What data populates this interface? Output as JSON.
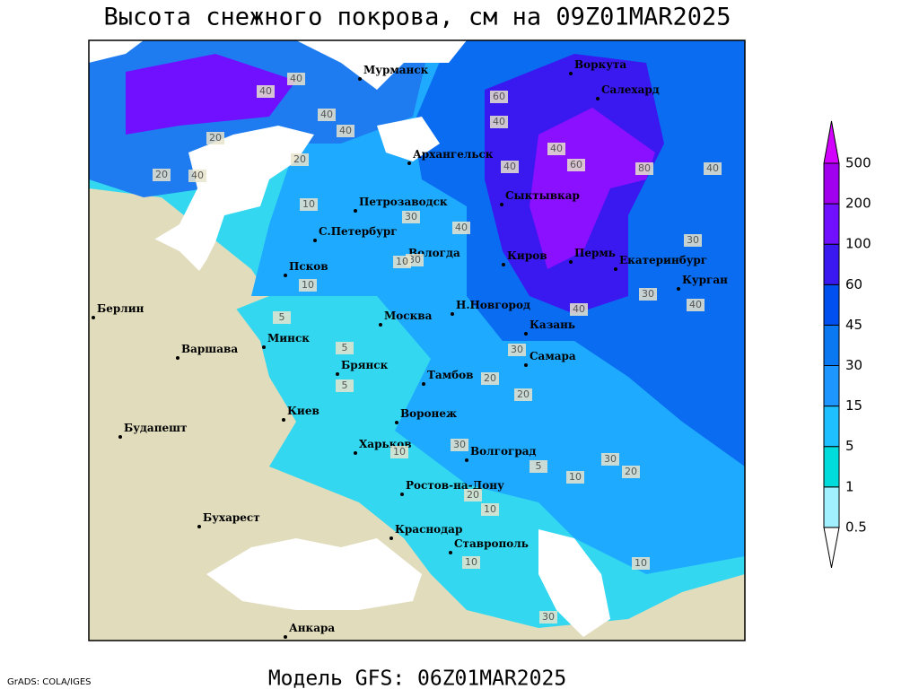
{
  "title": "Высота снежного покрова, см на 09Z01MAR2025",
  "footer": "Модель GFS: 06Z01MAR2025",
  "credit": "GrADS: COLA/IGES",
  "colorbar": {
    "levels": [
      "0.5",
      "1",
      "5",
      "15",
      "30",
      "45",
      "60",
      "100",
      "200",
      "500"
    ],
    "colors": [
      "#ffffff",
      "#a0f0ff",
      "#00dcdc",
      "#1ec0ff",
      "#1e96ff",
      "#0a78f0",
      "#0050f0",
      "#3a18f0",
      "#7010ff",
      "#a000ee",
      "#d200ff"
    ]
  },
  "cities": [
    "Мурманск",
    "Воркута",
    "Салехард",
    "Архангельск",
    "Петрозаводск",
    "Сыктывкар",
    "С.Петербург",
    "Вологда",
    "Киров",
    "Пермь",
    "Екатеринбург",
    "Курган",
    "Псков",
    "Н.Новгород",
    "Казань",
    "Москва",
    "Берлин",
    "Варшава",
    "Минск",
    "Брянск",
    "Тамбов",
    "Самара",
    "Киев",
    "Воронеж",
    "Харьков",
    "Волгоград",
    "Будапешт",
    "Ростов-на-Дону",
    "Бухарест",
    "Краснодар",
    "Ставрополь",
    "Анкара"
  ],
  "contour_labels": [
    "40",
    "40",
    "20",
    "40",
    "20",
    "40",
    "40",
    "20",
    "60",
    "40",
    "40",
    "60",
    "80",
    "40",
    "30",
    "40",
    "10",
    "30",
    "40",
    "30",
    "10",
    "5",
    "10",
    "5",
    "5",
    "30",
    "20",
    "40",
    "30",
    "20",
    "10",
    "30",
    "20",
    "10",
    "10",
    "20",
    "30",
    "30",
    "40",
    "10",
    "5",
    "10"
  ]
}
